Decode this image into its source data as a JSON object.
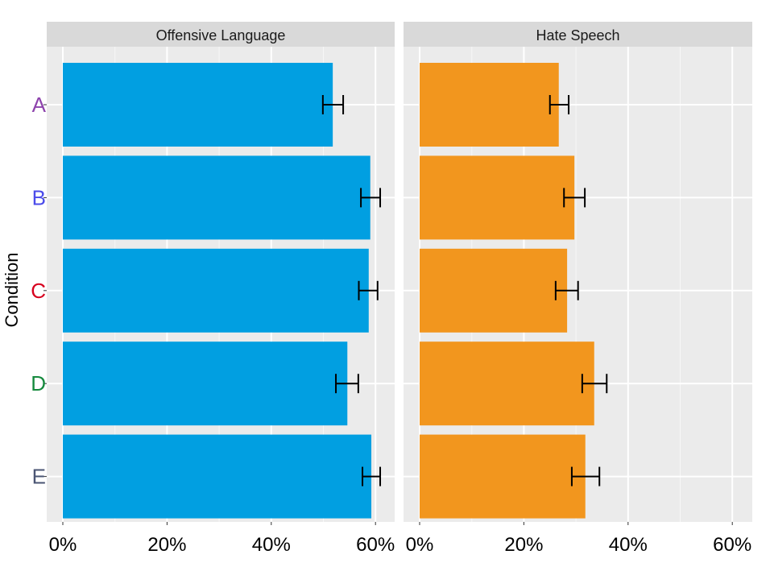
{
  "chart_data": {
    "type": "bar",
    "orientation": "horizontal",
    "ylabel": "Condition",
    "xlabel": "",
    "categories": [
      "A",
      "B",
      "C",
      "D",
      "E"
    ],
    "category_colors": [
      "#8e44ad",
      "#4b4bea",
      "#d7001e",
      "#168a3e",
      "#4a5573"
    ],
    "x_ticks": [
      "0%",
      "20%",
      "40%",
      "60%"
    ],
    "xlim": [
      -3,
      64
    ],
    "grid": true,
    "panels": [
      {
        "title": "Offensive Language",
        "color": "#019fe1",
        "values": [
          51.8,
          59.0,
          58.7,
          54.6,
          59.2
        ],
        "err_low": [
          49.9,
          57.2,
          56.8,
          52.4,
          57.5
        ],
        "err_high": [
          53.8,
          60.9,
          60.4,
          56.7,
          60.9
        ]
      },
      {
        "title": "Hate Speech",
        "color": "#f2961e",
        "values": [
          26.7,
          29.7,
          28.3,
          33.5,
          31.8
        ],
        "err_low": [
          25.0,
          27.7,
          26.1,
          31.2,
          29.2
        ],
        "err_high": [
          28.6,
          31.7,
          30.4,
          35.9,
          34.5
        ]
      }
    ]
  }
}
